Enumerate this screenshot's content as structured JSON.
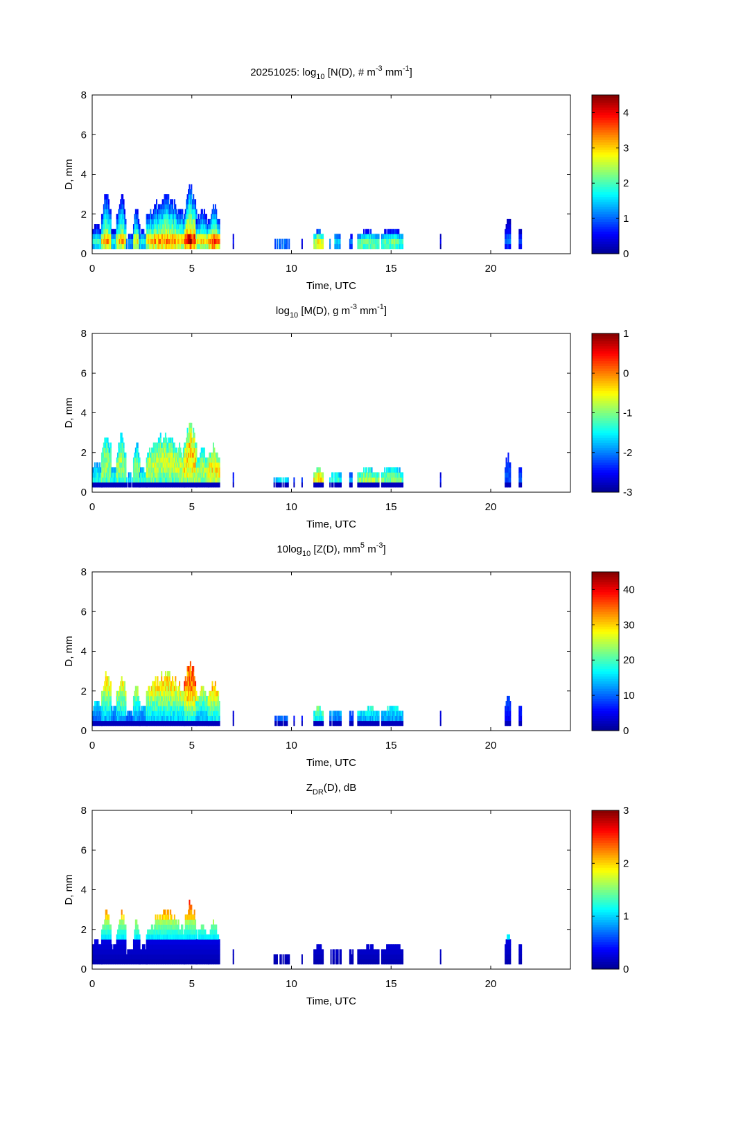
{
  "chart_data": [
    {
      "type": "heatmap",
      "title": {
        "prefix": "20251025: log",
        "sub": "10",
        "main": " [N(D), # m",
        "sup1": "-3",
        "mid": " mm",
        "sup2": "-1",
        "end": "]"
      },
      "xlabel": "Time, UTC",
      "ylabel": "D, mm",
      "xlim": [
        0,
        24
      ],
      "ylim": [
        0,
        8
      ],
      "xticks": [
        0,
        5,
        10,
        15,
        20
      ],
      "yticks": [
        0,
        2,
        4,
        6,
        8
      ],
      "colorbar": {
        "range": [
          0,
          4.5
        ],
        "ticks": [
          0,
          1,
          2,
          3,
          4
        ]
      },
      "profile": "number"
    },
    {
      "type": "heatmap",
      "title": {
        "prefix": "log",
        "sub": "10",
        "main": " [M(D), g m",
        "sup1": "-3",
        "mid": " mm",
        "sup2": "-1",
        "end": "]"
      },
      "xlabel": "Time, UTC",
      "ylabel": "D, mm",
      "xlim": [
        0,
        24
      ],
      "ylim": [
        0,
        8
      ],
      "xticks": [
        0,
        5,
        10,
        15,
        20
      ],
      "yticks": [
        0,
        2,
        4,
        6,
        8
      ],
      "colorbar": {
        "range": [
          -3,
          1
        ],
        "ticks": [
          -3,
          -2,
          -1,
          0,
          1
        ]
      },
      "profile": "mass"
    },
    {
      "type": "heatmap",
      "title": {
        "prefix": "10log",
        "sub": "10",
        "main": " [Z(D),  mm",
        "sup1": "5",
        "mid": " m",
        "sup2": "-3",
        "end": "]"
      },
      "xlabel": "Time, UTC",
      "ylabel": "D, mm",
      "xlim": [
        0,
        24
      ],
      "ylim": [
        0,
        8
      ],
      "xticks": [
        0,
        5,
        10,
        15,
        20
      ],
      "yticks": [
        0,
        2,
        4,
        6,
        8
      ],
      "colorbar": {
        "range": [
          0,
          45
        ],
        "ticks": [
          0,
          10,
          20,
          30,
          40
        ]
      },
      "profile": "reflectivity"
    },
    {
      "type": "heatmap",
      "title": {
        "prefix": "Z",
        "sub": "DR",
        "main": "(D), dB",
        "sup1": "",
        "mid": "",
        "sup2": "",
        "end": ""
      },
      "xlabel": "Time, UTC",
      "ylabel": "D, mm",
      "xlim": [
        0,
        24
      ],
      "ylim": [
        0,
        8
      ],
      "xticks": [
        0,
        5,
        10,
        15,
        20
      ],
      "yticks": [
        0,
        2,
        4,
        6,
        8
      ],
      "colorbar": {
        "range": [
          0,
          3
        ],
        "ticks": [
          0,
          1,
          2,
          3
        ]
      },
      "profile": "zdr"
    }
  ],
  "precip_events": [
    {
      "t_start": 0.0,
      "t_end": 0.45,
      "dmax": 1.6,
      "intensity": 0.55
    },
    {
      "t_start": 0.45,
      "t_end": 0.95,
      "dmax": 3.1,
      "intensity": 0.75
    },
    {
      "t_start": 0.95,
      "t_end": 1.2,
      "dmax": 1.2,
      "intensity": 0.55
    },
    {
      "t_start": 1.2,
      "t_end": 1.7,
      "dmax": 2.9,
      "intensity": 0.75
    },
    {
      "t_start": 1.7,
      "t_end": 2.05,
      "dmax": 1.0,
      "intensity": 0.5
    },
    {
      "t_start": 2.05,
      "t_end": 2.35,
      "dmax": 2.5,
      "intensity": 0.7
    },
    {
      "t_start": 2.35,
      "t_end": 2.7,
      "dmax": 1.3,
      "intensity": 0.6
    },
    {
      "t_start": 2.7,
      "t_end": 4.6,
      "dmax": 3.0,
      "intensity": 0.8
    },
    {
      "t_start": 4.6,
      "t_end": 5.2,
      "dmax": 3.6,
      "intensity": 0.95
    },
    {
      "t_start": 5.2,
      "t_end": 5.8,
      "dmax": 2.3,
      "intensity": 0.75
    },
    {
      "t_start": 5.8,
      "t_end": 6.35,
      "dmax": 2.5,
      "intensity": 0.9
    },
    {
      "t_start": 7.05,
      "t_end": 7.1,
      "dmax": 1.1,
      "intensity": 0.2
    },
    {
      "t_start": 9.1,
      "t_end": 9.9,
      "dmax": 0.8,
      "intensity": 0.55
    },
    {
      "t_start": 10.1,
      "t_end": 10.15,
      "dmax": 0.7,
      "intensity": 0.3
    },
    {
      "t_start": 10.5,
      "t_end": 10.55,
      "dmax": 0.7,
      "intensity": 0.3
    },
    {
      "t_start": 11.1,
      "t_end": 11.6,
      "dmax": 1.3,
      "intensity": 0.9
    },
    {
      "t_start": 11.9,
      "t_end": 12.5,
      "dmax": 1.1,
      "intensity": 0.6
    },
    {
      "t_start": 12.9,
      "t_end": 13.1,
      "dmax": 0.9,
      "intensity": 0.45
    },
    {
      "t_start": 13.3,
      "t_end": 14.4,
      "dmax": 1.2,
      "intensity": 0.75
    },
    {
      "t_start": 14.5,
      "t_end": 15.6,
      "dmax": 1.3,
      "intensity": 0.7
    },
    {
      "t_start": 17.45,
      "t_end": 17.5,
      "dmax": 0.9,
      "intensity": 0.2
    },
    {
      "t_start": 20.7,
      "t_end": 21.0,
      "dmax": 1.9,
      "intensity": 0.3
    },
    {
      "t_start": 21.4,
      "t_end": 21.55,
      "dmax": 1.2,
      "intensity": 0.3
    }
  ],
  "jet_colormap": [
    "#00008f",
    "#0000ff",
    "#0080ff",
    "#00ffff",
    "#80ff80",
    "#ffff00",
    "#ff8000",
    "#ff0000",
    "#800000"
  ]
}
